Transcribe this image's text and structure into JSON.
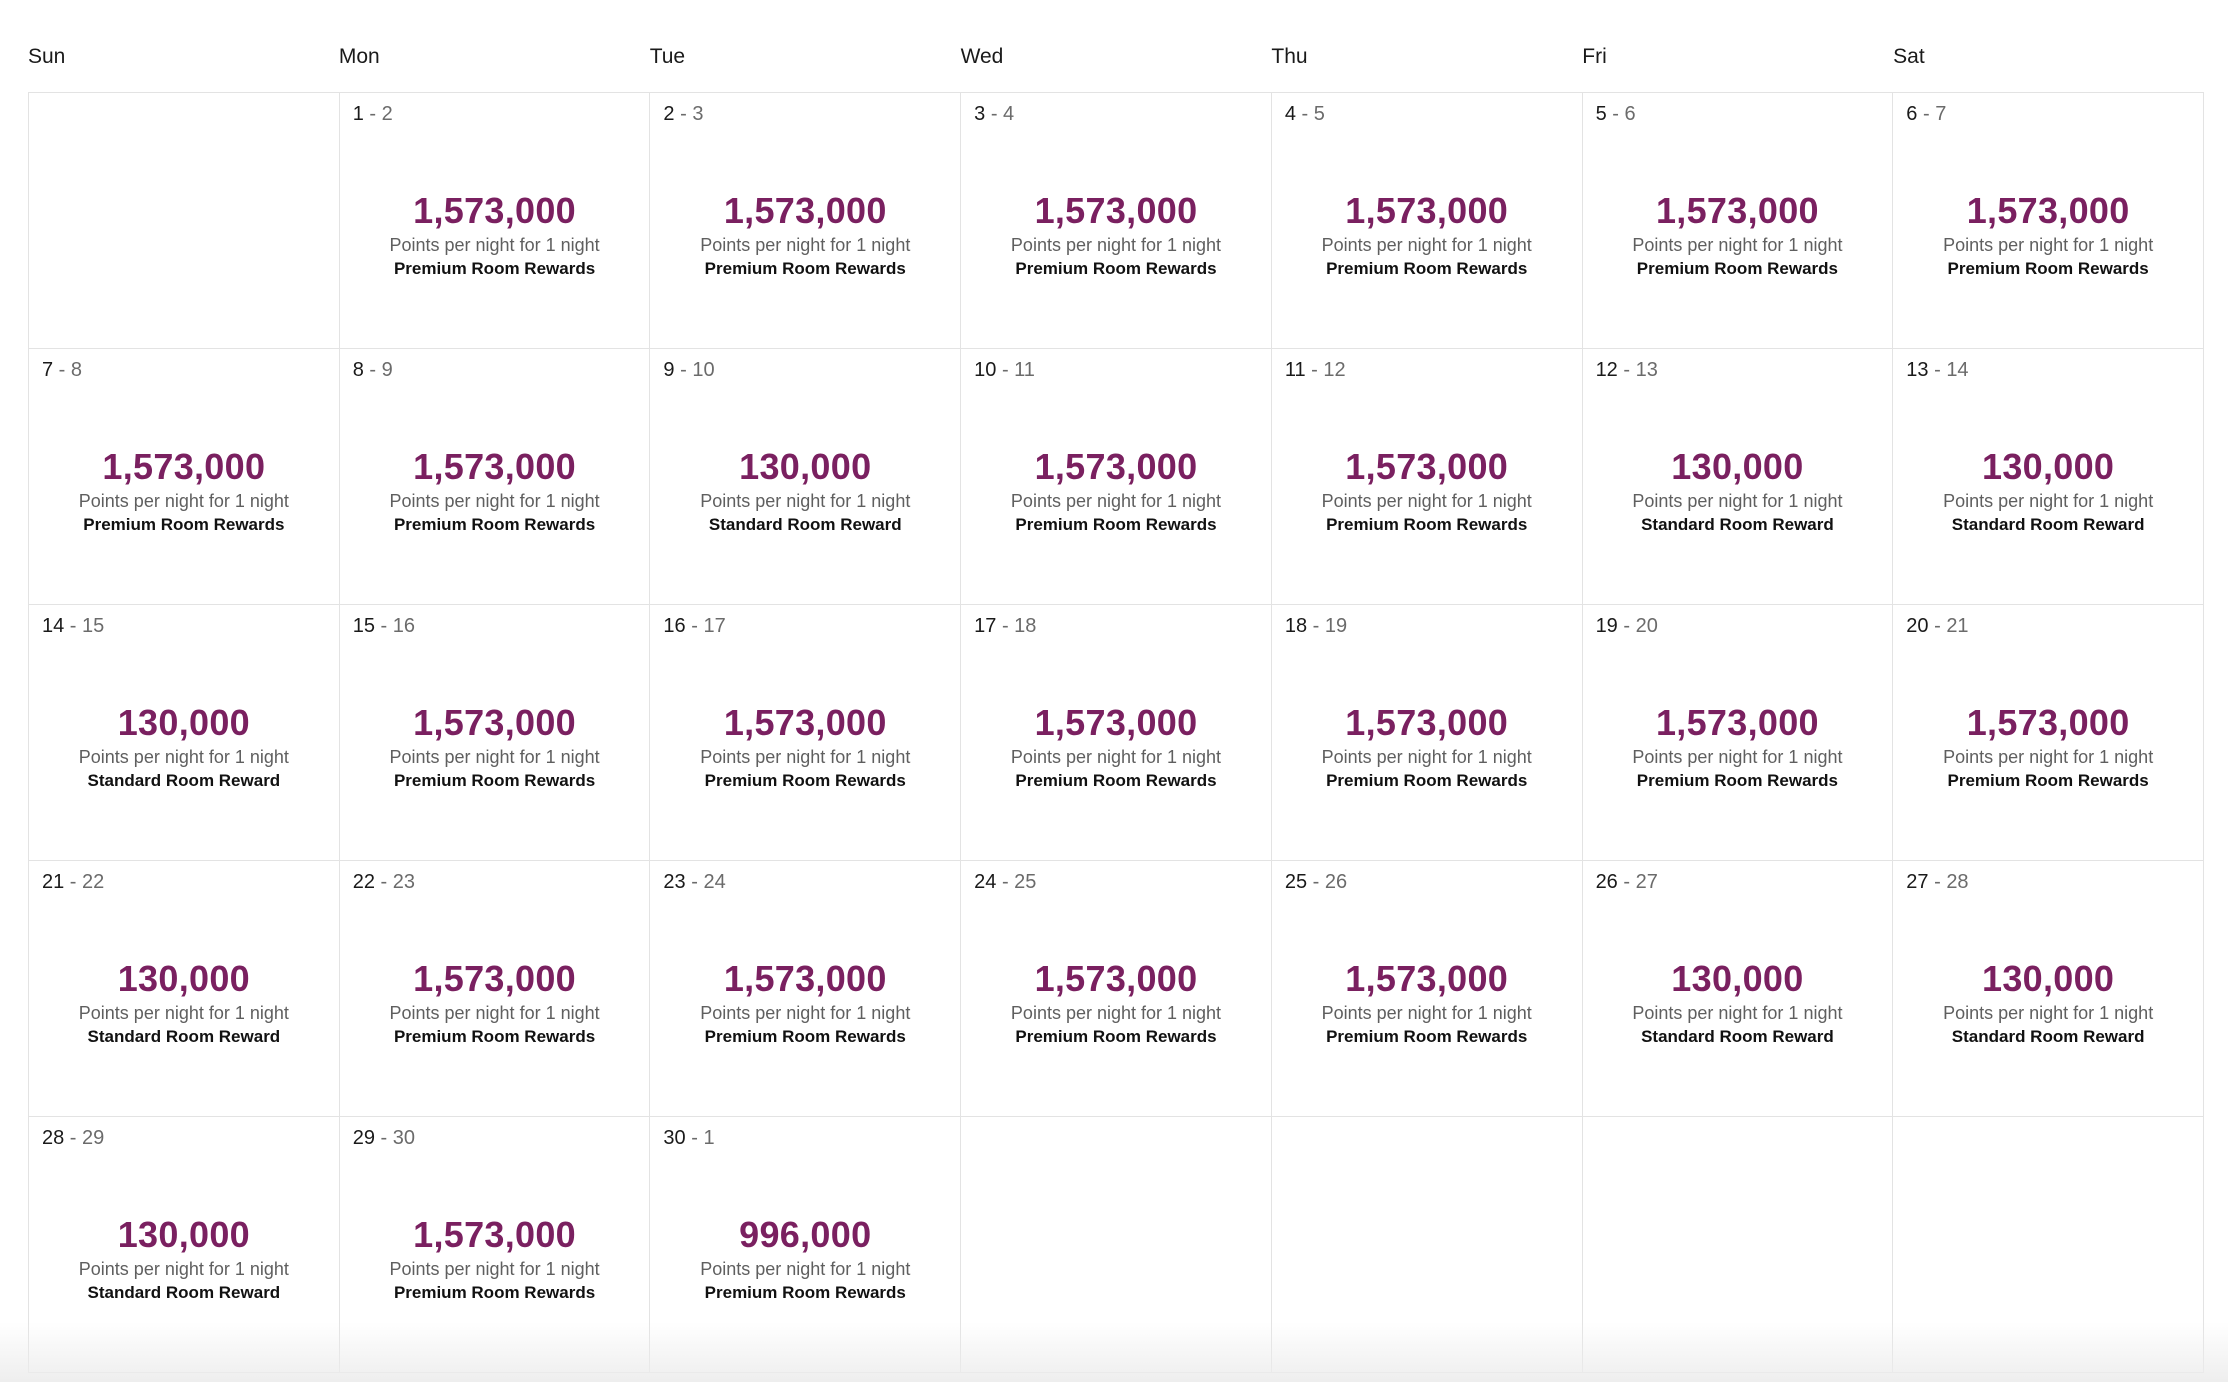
{
  "weekdays": [
    "Sun",
    "Mon",
    "Tue",
    "Wed",
    "Thu",
    "Fri",
    "Sat"
  ],
  "colors": {
    "points": "#7a2060",
    "grid_border": "#e3e3e3"
  },
  "leading_empty": 1,
  "trailing_empty": 4,
  "days": [
    {
      "start": "1",
      "end": "2",
      "points": "1,573,000",
      "sub": "Points per night for 1 night",
      "type": "Premium Room Rewards"
    },
    {
      "start": "2",
      "end": "3",
      "points": "1,573,000",
      "sub": "Points per night for 1 night",
      "type": "Premium Room Rewards"
    },
    {
      "start": "3",
      "end": "4",
      "points": "1,573,000",
      "sub": "Points per night for 1 night",
      "type": "Premium Room Rewards"
    },
    {
      "start": "4",
      "end": "5",
      "points": "1,573,000",
      "sub": "Points per night for 1 night",
      "type": "Premium Room Rewards"
    },
    {
      "start": "5",
      "end": "6",
      "points": "1,573,000",
      "sub": "Points per night for 1 night",
      "type": "Premium Room Rewards"
    },
    {
      "start": "6",
      "end": "7",
      "points": "1,573,000",
      "sub": "Points per night for 1 night",
      "type": "Premium Room Rewards"
    },
    {
      "start": "7",
      "end": "8",
      "points": "1,573,000",
      "sub": "Points per night for 1 night",
      "type": "Premium Room Rewards"
    },
    {
      "start": "8",
      "end": "9",
      "points": "1,573,000",
      "sub": "Points per night for 1 night",
      "type": "Premium Room Rewards"
    },
    {
      "start": "9",
      "end": "10",
      "points": "130,000",
      "sub": "Points per night for 1 night",
      "type": "Standard Room Reward"
    },
    {
      "start": "10",
      "end": "11",
      "points": "1,573,000",
      "sub": "Points per night for 1 night",
      "type": "Premium Room Rewards"
    },
    {
      "start": "11",
      "end": "12",
      "points": "1,573,000",
      "sub": "Points per night for 1 night",
      "type": "Premium Room Rewards"
    },
    {
      "start": "12",
      "end": "13",
      "points": "130,000",
      "sub": "Points per night for 1 night",
      "type": "Standard Room Reward"
    },
    {
      "start": "13",
      "end": "14",
      "points": "130,000",
      "sub": "Points per night for 1 night",
      "type": "Standard Room Reward"
    },
    {
      "start": "14",
      "end": "15",
      "points": "130,000",
      "sub": "Points per night for 1 night",
      "type": "Standard Room Reward"
    },
    {
      "start": "15",
      "end": "16",
      "points": "1,573,000",
      "sub": "Points per night for 1 night",
      "type": "Premium Room Rewards"
    },
    {
      "start": "16",
      "end": "17",
      "points": "1,573,000",
      "sub": "Points per night for 1 night",
      "type": "Premium Room Rewards"
    },
    {
      "start": "17",
      "end": "18",
      "points": "1,573,000",
      "sub": "Points per night for 1 night",
      "type": "Premium Room Rewards"
    },
    {
      "start": "18",
      "end": "19",
      "points": "1,573,000",
      "sub": "Points per night for 1 night",
      "type": "Premium Room Rewards"
    },
    {
      "start": "19",
      "end": "20",
      "points": "1,573,000",
      "sub": "Points per night for 1 night",
      "type": "Premium Room Rewards"
    },
    {
      "start": "20",
      "end": "21",
      "points": "1,573,000",
      "sub": "Points per night for 1 night",
      "type": "Premium Room Rewards"
    },
    {
      "start": "21",
      "end": "22",
      "points": "130,000",
      "sub": "Points per night for 1 night",
      "type": "Standard Room Reward"
    },
    {
      "start": "22",
      "end": "23",
      "points": "1,573,000",
      "sub": "Points per night for 1 night",
      "type": "Premium Room Rewards"
    },
    {
      "start": "23",
      "end": "24",
      "points": "1,573,000",
      "sub": "Points per night for 1 night",
      "type": "Premium Room Rewards"
    },
    {
      "start": "24",
      "end": "25",
      "points": "1,573,000",
      "sub": "Points per night for 1 night",
      "type": "Premium Room Rewards"
    },
    {
      "start": "25",
      "end": "26",
      "points": "1,573,000",
      "sub": "Points per night for 1 night",
      "type": "Premium Room Rewards"
    },
    {
      "start": "26",
      "end": "27",
      "points": "130,000",
      "sub": "Points per night for 1 night",
      "type": "Standard Room Reward"
    },
    {
      "start": "27",
      "end": "28",
      "points": "130,000",
      "sub": "Points per night for 1 night",
      "type": "Standard Room Reward"
    },
    {
      "start": "28",
      "end": "29",
      "points": "130,000",
      "sub": "Points per night for 1 night",
      "type": "Standard Room Reward"
    },
    {
      "start": "29",
      "end": "30",
      "points": "1,573,000",
      "sub": "Points per night for 1 night",
      "type": "Premium Room Rewards"
    },
    {
      "start": "30",
      "end": "1",
      "points": "996,000",
      "sub": "Points per night for 1 night",
      "type": "Premium Room Rewards"
    }
  ]
}
